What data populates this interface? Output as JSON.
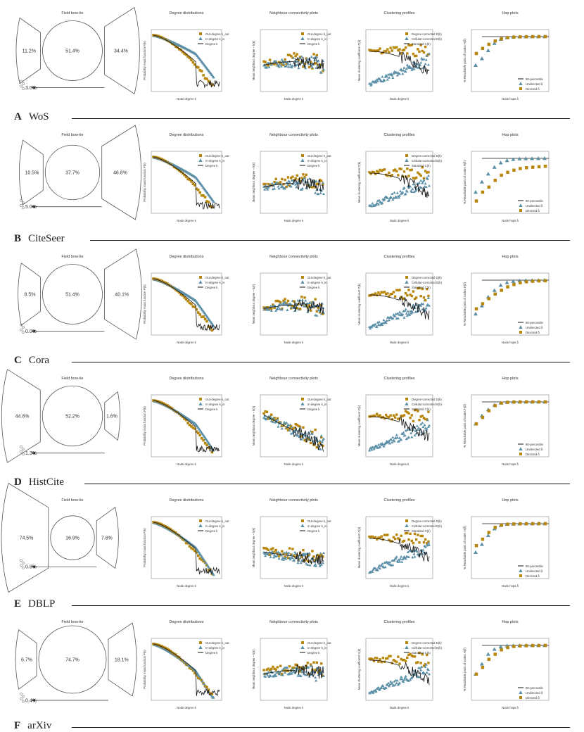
{
  "colors": {
    "out": "#b8860b",
    "in": "#5b8fa8",
    "line": "#111111",
    "outline": "#555555"
  },
  "panel_titles": {
    "bowtie": "Field bow-tie",
    "degree": "Degree distributions",
    "neighbour": "Neighbour connectivity plots",
    "clustering": "Clustering profiles",
    "hop": "Hop plots"
  },
  "axes": {
    "degree": {
      "xlabel": "Node degree k",
      "ylabel": "Probability mass function P(k)"
    },
    "neighbour": {
      "xlabel": "Node degree k",
      "ylabel": "Mean neighbour degree ~ k(k)"
    },
    "clustering": {
      "xlabel": "Node degree k",
      "ylabel": "Mean clustering coefficient C(k)"
    },
    "hop": {
      "xlabel": "Node hops δ",
      "ylabel": "% Reachable pairs of nodes H(δ)"
    }
  },
  "legends": {
    "degree": [
      "Out-degree k_out",
      "In-degree k_in",
      "Degree k"
    ],
    "clustering": [
      "Degree-corrected D(k)",
      "Cellular-corrected E(k)",
      "Standard C(k)"
    ],
    "hop": [
      "90-percentile",
      "Undirected δ",
      "Directed δ"
    ]
  },
  "datasets": [
    {
      "letter": "A",
      "name": "WoS",
      "bowtie": {
        "in": "11.2%",
        "core": "51.4%",
        "out": "34.4%",
        "tube": "3.0%"
      }
    },
    {
      "letter": "B",
      "name": "CiteSeer",
      "bowtie": {
        "in": "10.5%",
        "core": "37.7%",
        "out": "46.8%",
        "tube": "5.0%"
      }
    },
    {
      "letter": "C",
      "name": "Cora",
      "bowtie": {
        "in": "8.5%",
        "core": "51.4%",
        "out": "40.1%",
        "tube": "0.0%"
      }
    },
    {
      "letter": "D",
      "name": "HistCite",
      "bowtie": {
        "in": "44.8%",
        "core": "52.2%",
        "out": "1.6%",
        "tube": "1.3%"
      }
    },
    {
      "letter": "E",
      "name": "DBLP",
      "bowtie": {
        "in": "74.5%",
        "core": "16.9%",
        "out": "7.8%",
        "tube": "0.8%"
      }
    },
    {
      "letter": "F",
      "name": "arXiv",
      "bowtie": {
        "in": "6.7%",
        "core": "74.7%",
        "out": "18.1%",
        "tube": "0.4%"
      }
    }
  ],
  "chart_data": {
    "type": "composite-figure",
    "panels_per_row": [
      "Field bow-tie",
      "Degree distributions",
      "Neighbour connectivity plots",
      "Clustering profiles",
      "Hop plots"
    ],
    "bowtie_percentages": [
      {
        "dataset": "WoS",
        "in": 11.2,
        "core": 51.4,
        "out": 34.4,
        "tubes": 3.0
      },
      {
        "dataset": "CiteSeer",
        "in": 10.5,
        "core": 37.7,
        "out": 46.8,
        "tubes": 5.0
      },
      {
        "dataset": "Cora",
        "in": 8.5,
        "core": 51.4,
        "out": 40.1,
        "tubes": 0.0
      },
      {
        "dataset": "HistCite",
        "in": 44.8,
        "core": 52.2,
        "out": 1.6,
        "tubes": 1.3
      },
      {
        "dataset": "DBLP",
        "in": 74.5,
        "core": 16.9,
        "out": 7.8,
        "tubes": 0.8
      },
      {
        "dataset": "arXiv",
        "in": 6.7,
        "core": 74.7,
        "out": 18.1,
        "tubes": 0.4
      }
    ],
    "hop_plots": {
      "x": [
        1,
        2,
        3,
        4,
        5,
        6,
        7,
        8,
        9,
        10,
        11,
        12
      ],
      "undirected": [
        [
          0.02,
          0.05,
          0.15,
          0.4,
          0.7,
          0.88,
          0.95,
          0.98,
          0.99,
          1.0,
          1.0,
          1.0
        ],
        [
          0.01,
          0.04,
          0.12,
          0.3,
          0.55,
          0.75,
          0.88,
          0.94,
          0.97,
          0.98,
          0.99,
          1.0
        ],
        [
          0.01,
          0.03,
          0.1,
          0.25,
          0.5,
          0.72,
          0.86,
          0.93,
          0.97,
          0.98,
          0.99,
          1.0
        ],
        [
          0.05,
          0.15,
          0.35,
          0.65,
          0.88,
          0.96,
          0.99,
          1.0,
          1.0,
          1.0,
          1.0,
          1.0
        ],
        [
          0.02,
          0.06,
          0.2,
          0.5,
          0.8,
          0.93,
          0.97,
          0.99,
          1.0,
          1.0,
          1.0,
          1.0
        ],
        [
          0.02,
          0.08,
          0.3,
          0.6,
          0.85,
          0.95,
          0.98,
          0.99,
          1.0,
          1.0,
          1.0,
          1.0
        ]
      ],
      "directed": [
        [
          0.1,
          0.2,
          0.35,
          0.55,
          0.75,
          0.87,
          0.93,
          0.96,
          0.98,
          0.99,
          1.0,
          1.0
        ],
        [
          0.003,
          0.01,
          0.02,
          0.05,
          0.1,
          0.15,
          0.2,
          0.25,
          0.28,
          0.3,
          0.32,
          0.34
        ],
        [
          0.02,
          0.04,
          0.08,
          0.15,
          0.25,
          0.4,
          0.55,
          0.7,
          0.8,
          0.86,
          0.9,
          0.92
        ],
        [
          0.05,
          0.12,
          0.3,
          0.6,
          0.85,
          0.94,
          0.98,
          0.99,
          1.0,
          1.0,
          1.0,
          1.0
        ],
        [
          0.05,
          0.12,
          0.3,
          0.6,
          0.82,
          0.92,
          0.96,
          0.98,
          0.99,
          1.0,
          1.0,
          1.0
        ],
        [
          0.02,
          0.05,
          0.15,
          0.3,
          0.55,
          0.75,
          0.87,
          0.93,
          0.96,
          0.98,
          0.99,
          1.0
        ]
      ]
    }
  }
}
